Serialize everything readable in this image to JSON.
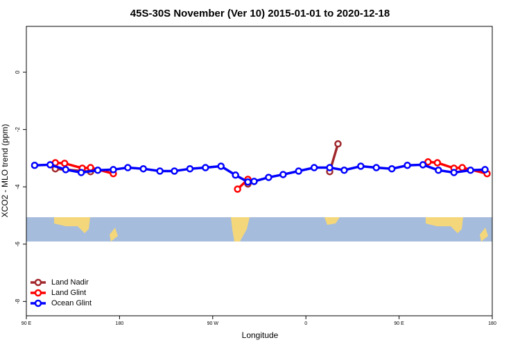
{
  "chart_data": {
    "type": "line",
    "title": "45S-30S November (Ver 10)   2015-01-01 to 2020-12-18",
    "xlabel": "Longitude",
    "ylabel": "XCO2 - MLO trend (ppm)",
    "xlim": [
      90,
      540
    ],
    "ylim": [
      -8.5,
      1.6
    ],
    "xticks": [
      {
        "value": 90,
        "label": "90 E"
      },
      180,
      {
        "value": 270,
        "label": "90 W"
      },
      {
        "value": 360,
        "label": "0"
      },
      {
        "value": 450,
        "label": "90 E"
      },
      {
        "value": 540,
        "label": "180"
      }
    ],
    "yticks": [
      0,
      -2,
      -4,
      -6,
      -8
    ],
    "legend": "bottom-left",
    "series": [
      {
        "name": "Land Nadir",
        "color": "#a0282d",
        "x": [
          118,
          152,
          null,
          304,
          null,
          383,
          391
        ],
        "values": [
          -3.37,
          -3.47,
          null,
          -3.9,
          null,
          -3.47,
          -2.5
        ]
      },
      {
        "name": "Land Glint",
        "color": "#ff0000",
        "x": [
          118,
          127,
          144,
          152,
          174,
          null,
          294,
          304,
          null,
          478,
          487,
          503,
          511,
          535
        ],
        "values": [
          -3.16,
          -3.18,
          -3.35,
          -3.33,
          -3.54,
          null,
          -4.08,
          -3.74,
          null,
          -3.13,
          -3.16,
          -3.35,
          -3.33,
          -3.54
        ]
      },
      {
        "name": "Ocean Glint",
        "color": "#0000ff",
        "x": [
          98,
          113,
          128,
          143,
          159,
          174,
          188,
          203,
          219,
          233,
          248,
          263,
          278,
          292,
          304,
          310,
          324,
          338,
          353,
          368,
          383,
          397,
          413,
          428,
          443,
          458,
          473,
          488,
          503,
          519,
          533
        ],
        "values": [
          -3.25,
          -3.23,
          -3.4,
          -3.5,
          -3.42,
          -3.4,
          -3.33,
          -3.37,
          -3.45,
          -3.45,
          -3.37,
          -3.33,
          -3.28,
          -3.59,
          -3.83,
          -3.81,
          -3.67,
          -3.57,
          -3.45,
          -3.33,
          -3.33,
          -3.42,
          -3.28,
          -3.33,
          -3.37,
          -3.25,
          -3.23,
          -3.42,
          -3.5,
          -3.42,
          -3.4
        ]
      }
    ]
  }
}
